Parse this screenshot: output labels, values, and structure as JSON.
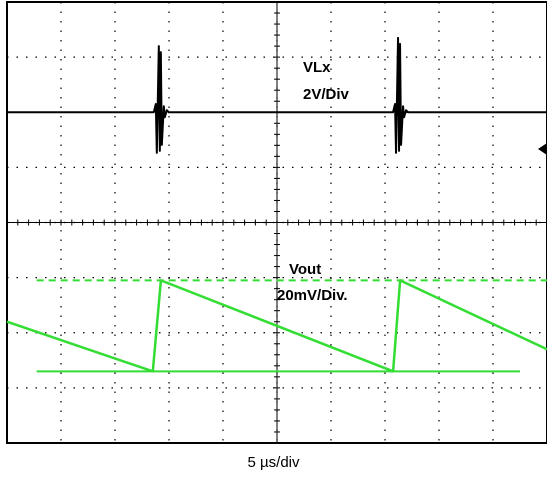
{
  "chart_data": {
    "type": "line",
    "xlabel": "5 µs/div",
    "divisions": {
      "x": 10,
      "y": 8
    },
    "grid": true,
    "colors": {
      "vlx": "#000000",
      "vout": "#33dd33",
      "grid": "#000000",
      "background": "#ffffff"
    },
    "channels": [
      {
        "id": "vlx",
        "label_line1": "VLx",
        "label_line2": "2V/Div",
        "baseline_div": 6.0,
        "spikes": [
          {
            "t_div": 2.83,
            "peak_div": 7.2,
            "trough_div": 5.3
          },
          {
            "t_div": 7.26,
            "peak_div": 7.35,
            "trough_div": 5.3
          }
        ]
      },
      {
        "id": "vout",
        "label_line1": "Vout",
        "label_line2": "20mV/Div.",
        "reference_high_div": 2.95,
        "reference_low_div": 1.3,
        "ramp_points": [
          [
            0.0,
            2.2
          ],
          [
            2.7,
            1.3
          ],
          [
            2.85,
            2.95
          ],
          [
            7.15,
            1.3
          ],
          [
            7.28,
            2.95
          ],
          [
            10.0,
            1.7
          ]
        ]
      }
    ]
  }
}
